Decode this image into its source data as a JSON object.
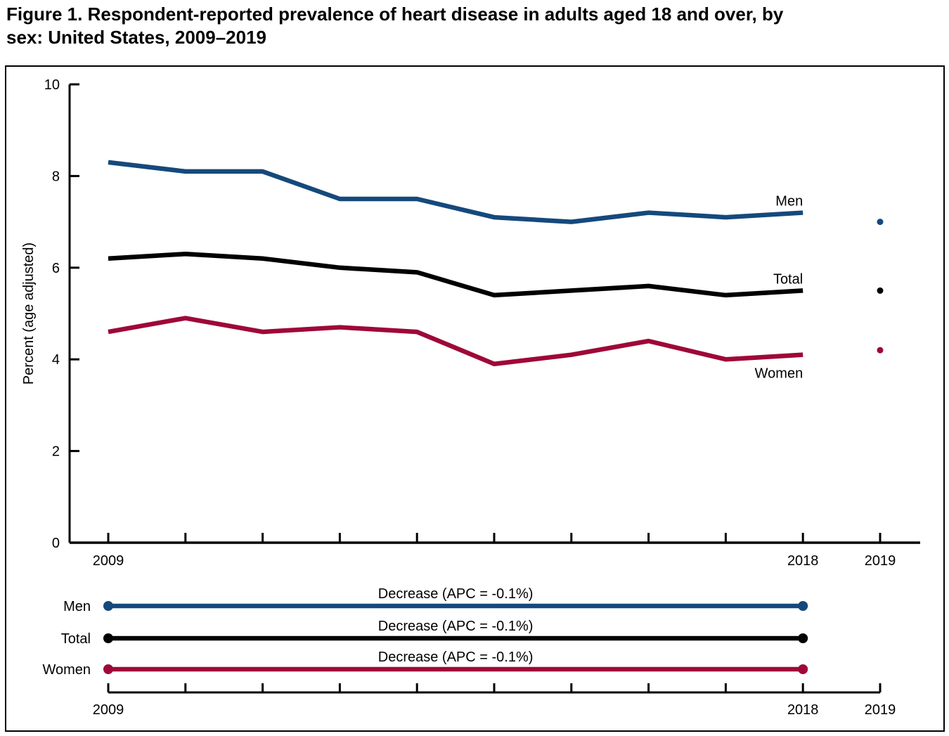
{
  "title": {
    "line1": "Figure 1. Respondent-reported prevalence of heart disease in adults aged 18 and over, by",
    "line2": "sex: United States, 2009–2019",
    "full": "Figure 1. Respondent-reported prevalence of heart disease in adults aged 18 and over, by sex: United States, 2009–2019"
  },
  "colors": {
    "men": "#15497C",
    "total": "#000000",
    "women": "#9E0838",
    "axis": "#000000"
  },
  "chart_data": [
    {
      "type": "line",
      "title": "Respondent-reported prevalence of heart disease in adults aged 18 and over, by sex",
      "xlabel": "",
      "ylabel": "Percent (age adjusted)",
      "ylim": [
        0,
        10
      ],
      "yticks": [
        0,
        2,
        4,
        6,
        8,
        10
      ],
      "x": [
        2009,
        2010,
        2011,
        2012,
        2013,
        2014,
        2015,
        2016,
        2017,
        2018
      ],
      "xticks": [
        2009,
        2010,
        2011,
        2012,
        2013,
        2014,
        2015,
        2016,
        2017,
        2018,
        2019
      ],
      "xtick_labels": [
        {
          "index": 0,
          "label": "2009"
        },
        {
          "index": 9,
          "label": "2018"
        },
        {
          "index": 10,
          "label": "2019"
        }
      ],
      "grid": false,
      "legend_position": "inline-labels",
      "series": [
        {
          "name": "Men",
          "color_key": "men",
          "values": [
            8.3,
            8.1,
            8.1,
            7.5,
            7.5,
            7.1,
            7.0,
            7.2,
            7.1,
            7.2
          ],
          "point_2019": 7.0,
          "label_placement": "above"
        },
        {
          "name": "Total",
          "color_key": "total",
          "values": [
            6.2,
            6.3,
            6.2,
            6.0,
            5.9,
            5.4,
            5.5,
            5.6,
            5.4,
            5.5
          ],
          "point_2019": 5.5,
          "label_placement": "above"
        },
        {
          "name": "Women",
          "color_key": "women",
          "values": [
            4.6,
            4.9,
            4.6,
            4.7,
            4.6,
            3.9,
            4.1,
            4.4,
            4.0,
            4.1
          ],
          "point_2019": 4.2,
          "label_placement": "below"
        }
      ]
    },
    {
      "type": "trend-legend",
      "rows": [
        {
          "name": "Men",
          "color_key": "men",
          "annotation": "Decrease (APC = -0.1%)"
        },
        {
          "name": "Total",
          "color_key": "total",
          "annotation": "Decrease (APC = -0.1%)"
        },
        {
          "name": "Women",
          "color_key": "women",
          "annotation": "Decrease (APC = -0.1%)"
        }
      ],
      "span_year_indices": [
        0,
        9
      ],
      "axis_year_ticks": [
        2009,
        2010,
        2011,
        2012,
        2013,
        2014,
        2015,
        2016,
        2017,
        2018,
        2019
      ],
      "xtick_labels": [
        {
          "index": 0,
          "label": "2009"
        },
        {
          "index": 9,
          "label": "2018"
        },
        {
          "index": 10,
          "label": "2019"
        }
      ]
    }
  ]
}
